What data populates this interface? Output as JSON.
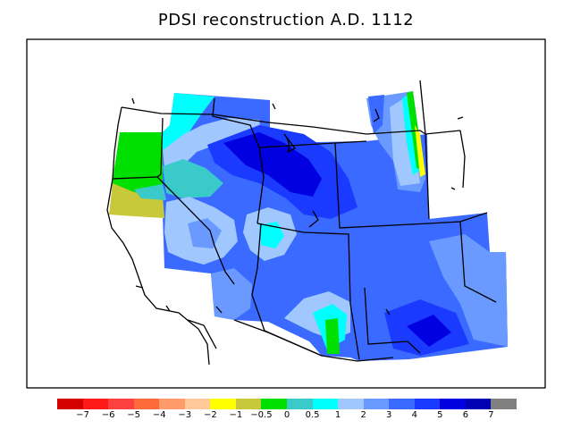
{
  "title": "PDSI reconstruction A.D. 1112",
  "legend": {
    "colors": [
      "#d40000",
      "#ff1a1a",
      "#ff4040",
      "#ff6a3a",
      "#ff9a6a",
      "#ffc99a",
      "#ffff00",
      "#c8c83a",
      "#00e000",
      "#3acaca",
      "#00ffff",
      "#a0c8ff",
      "#6a9aff",
      "#3a6aff",
      "#1a3aff",
      "#0000e0",
      "#0000b4",
      "#808080"
    ],
    "labels": [
      "−7",
      "−6",
      "−5",
      "−4",
      "−3",
      "−2",
      "−1",
      "−0.5",
      "0",
      "0.5",
      "1",
      "2",
      "3",
      "4",
      "5",
      "6",
      "7"
    ]
  },
  "palette": {
    "dry_strong": "#c8c83a",
    "near_normal": "#00e000",
    "slightly_wet": "#3acaca",
    "wet1": "#00ffff",
    "wet2": "#a0c8ff",
    "wet3": "#6a9aff",
    "wet4": "#3a6aff",
    "wet5": "#1a3aff",
    "wet6": "#0000e0",
    "wet7": "#0000b4"
  }
}
